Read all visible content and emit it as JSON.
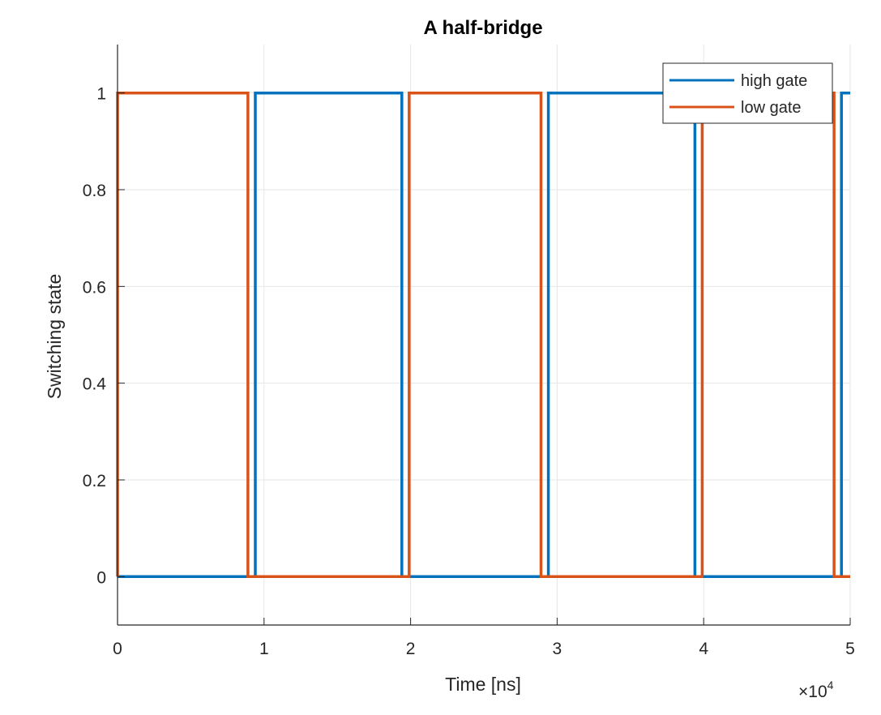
{
  "chart_data": {
    "type": "line",
    "title": "A half-bridge",
    "xlabel": "Time [ns]",
    "ylabel": "Switching state",
    "x_multiplier_label": "×10",
    "x_multiplier_exponent": "4",
    "xlim": [
      0,
      5
    ],
    "ylim": [
      -0.1,
      1.1
    ],
    "x_ticks": [
      0,
      1,
      2,
      3,
      4,
      5
    ],
    "x_tick_labels": [
      "0",
      "1",
      "2",
      "3",
      "4",
      "5"
    ],
    "y_ticks": [
      0,
      0.2,
      0.4,
      0.6,
      0.8,
      1
    ],
    "y_tick_labels": [
      "0",
      "0.2",
      "0.4",
      "0.6",
      "0.8",
      "1"
    ],
    "grid": true,
    "legend_position": "top-right",
    "series": [
      {
        "name": "high gate",
        "color": "#0072BD",
        "x": [
          0,
          0.94,
          0.94,
          1.94,
          1.94,
          2.94,
          2.94,
          3.94,
          3.94,
          4.94,
          4.94,
          5.0
        ],
        "y": [
          0,
          0,
          1,
          1,
          0,
          0,
          1,
          1,
          0,
          0,
          1,
          1
        ]
      },
      {
        "name": "low gate",
        "color": "#D95319",
        "x": [
          0,
          0,
          0.89,
          0.89,
          1.99,
          1.99,
          2.89,
          2.89,
          3.99,
          3.99,
          4.89,
          4.89,
          5.0
        ],
        "y": [
          0,
          1,
          1,
          0,
          0,
          1,
          1,
          0,
          0,
          1,
          1,
          0,
          0
        ]
      }
    ]
  }
}
